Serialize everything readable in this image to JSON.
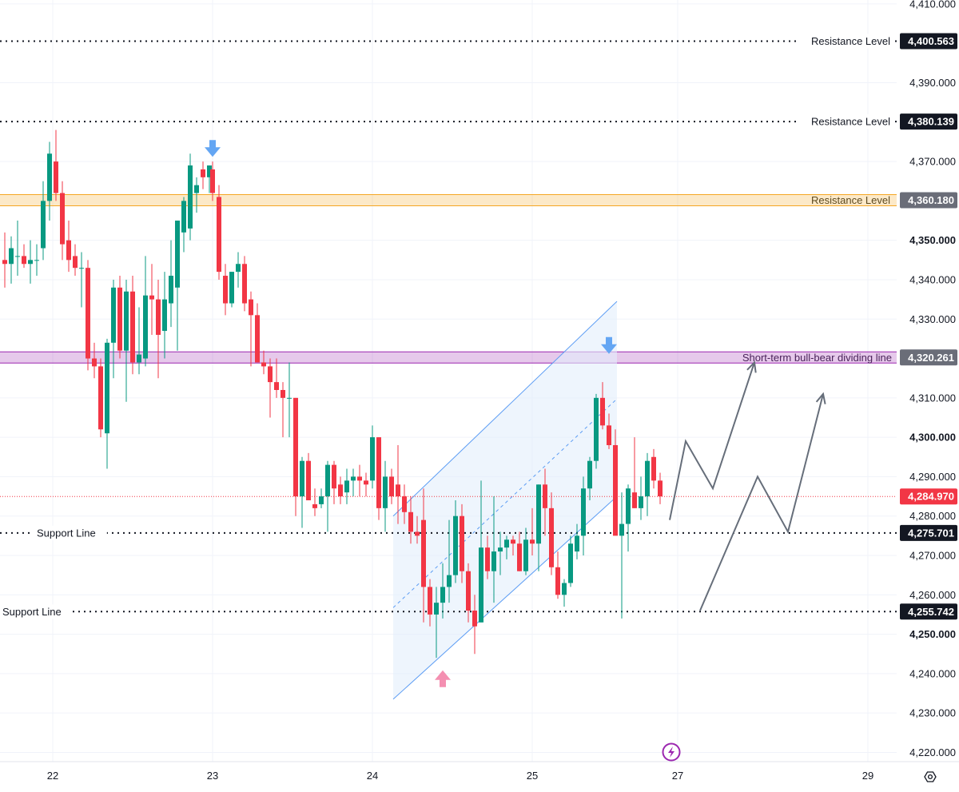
{
  "chart_data": {
    "type": "candlestick",
    "title": "",
    "xlabel": "",
    "ylabel": "",
    "ylim": [
      4216.5,
      4412
    ],
    "y_ticks": [
      {
        "value": 4410,
        "label": "4,410.000"
      },
      {
        "value": 4390,
        "label": "4,390.000"
      },
      {
        "value": 4370,
        "label": "4,370.000"
      },
      {
        "value": 4350,
        "label": "4,350.000",
        "bold": true
      },
      {
        "value": 4340,
        "label": "4,340.000"
      },
      {
        "value": 4330,
        "label": "4,330.000"
      },
      {
        "value": 4310,
        "label": "4,310.000"
      },
      {
        "value": 4300,
        "label": "4,300.000",
        "bold": true
      },
      {
        "value": 4290,
        "label": "4,290.000"
      },
      {
        "value": 4280,
        "label": "4,280.000"
      },
      {
        "value": 4270,
        "label": "4,270.000"
      },
      {
        "value": 4260,
        "label": "4,260.000"
      },
      {
        "value": 4250,
        "label": "4,250.000",
        "bold": true
      },
      {
        "value": 4240,
        "label": "4,240.000"
      },
      {
        "value": 4230,
        "label": "4,230.000"
      },
      {
        "value": 4220,
        "label": "4,220.000"
      }
    ],
    "x_ticks": [
      {
        "value": 0,
        "label": "22"
      },
      {
        "value": 1,
        "label": "23"
      },
      {
        "value": 2,
        "label": "24"
      },
      {
        "value": 3,
        "label": "25"
      },
      {
        "value": 3.91,
        "label": "27"
      },
      {
        "value": 5.1,
        "label": "29"
      }
    ],
    "grid": true,
    "candle_colors": {
      "up": "#089981",
      "down": "#f23645"
    },
    "candles": [
      {
        "t": -0.3,
        "o": 4345,
        "h": 4352,
        "l": 4338,
        "c": 4344
      },
      {
        "t": -0.26,
        "o": 4344,
        "h": 4351,
        "l": 4339,
        "c": 4348
      },
      {
        "t": -0.22,
        "o": 4346,
        "h": 4355,
        "l": 4341,
        "c": 4346
      },
      {
        "t": -0.18,
        "o": 4346,
        "h": 4349,
        "l": 4343,
        "c": 4344
      },
      {
        "t": -0.14,
        "o": 4344,
        "h": 4350,
        "l": 4339,
        "c": 4345
      },
      {
        "t": -0.1,
        "o": 4345,
        "h": 4349,
        "l": 4341,
        "c": 4345
      },
      {
        "t": -0.06,
        "o": 4348,
        "h": 4365,
        "l": 4345,
        "c": 4360
      },
      {
        "t": -0.02,
        "o": 4360,
        "h": 4375,
        "l": 4355,
        "c": 4372
      },
      {
        "t": 0.02,
        "o": 4370,
        "h": 4378,
        "l": 4360,
        "c": 4362
      },
      {
        "t": 0.06,
        "o": 4362,
        "h": 4365,
        "l": 4345,
        "c": 4349
      },
      {
        "t": 0.1,
        "o": 4350,
        "h": 4355,
        "l": 4342,
        "c": 4345
      },
      {
        "t": 0.14,
        "o": 4346,
        "h": 4349,
        "l": 4341,
        "c": 4343
      },
      {
        "t": 0.18,
        "o": 4343,
        "h": 4347,
        "l": 4333,
        "c": 4343
      },
      {
        "t": 0.22,
        "o": 4343,
        "h": 4345,
        "l": 4317,
        "c": 4320
      },
      {
        "t": 0.26,
        "o": 4320,
        "h": 4324,
        "l": 4315,
        "c": 4318
      },
      {
        "t": 0.3,
        "o": 4318,
        "h": 4320,
        "l": 4300,
        "c": 4302
      },
      {
        "t": 0.34,
        "o": 4301,
        "h": 4325,
        "l": 4292,
        "c": 4324
      },
      {
        "t": 0.38,
        "o": 4324,
        "h": 4340,
        "l": 4315,
        "c": 4338
      },
      {
        "t": 0.42,
        "o": 4338,
        "h": 4341,
        "l": 4320,
        "c": 4322
      },
      {
        "t": 0.46,
        "o": 4322,
        "h": 4340,
        "l": 4309,
        "c": 4337
      },
      {
        "t": 0.5,
        "o": 4337,
        "h": 4341,
        "l": 4316,
        "c": 4319
      },
      {
        "t": 0.54,
        "o": 4319,
        "h": 4333,
        "l": 4316,
        "c": 4321
      },
      {
        "t": 0.58,
        "o": 4320,
        "h": 4346,
        "l": 4318,
        "c": 4336
      },
      {
        "t": 0.62,
        "o": 4336,
        "h": 4344,
        "l": 4326,
        "c": 4335
      },
      {
        "t": 0.66,
        "o": 4335,
        "h": 4340,
        "l": 4315,
        "c": 4326
      },
      {
        "t": 0.7,
        "o": 4327,
        "h": 4342,
        "l": 4320,
        "c": 4335
      },
      {
        "t": 0.74,
        "o": 4334,
        "h": 4350,
        "l": 4328,
        "c": 4341
      },
      {
        "t": 0.78,
        "o": 4338,
        "h": 4355,
        "l": 4322,
        "c": 4355
      },
      {
        "t": 0.82,
        "o": 4352,
        "h": 4361,
        "l": 4347,
        "c": 4360
      },
      {
        "t": 0.86,
        "o": 4353,
        "h": 4372,
        "l": 4350,
        "c": 4369
      },
      {
        "t": 0.9,
        "o": 4362,
        "h": 4366,
        "l": 4357,
        "c": 4364
      },
      {
        "t": 0.94,
        "o": 4368,
        "h": 4370,
        "l": 4363,
        "c": 4366
      },
      {
        "t": 0.98,
        "o": 4366,
        "h": 4369,
        "l": 4362,
        "c": 4369
      },
      {
        "t": 1.0,
        "o": 4368,
        "h": 4370,
        "l": 4360,
        "c": 4362
      },
      {
        "t": 1.04,
        "o": 4361,
        "h": 4364,
        "l": 4340,
        "c": 4342
      },
      {
        "t": 1.08,
        "o": 4341,
        "h": 4344,
        "l": 4331,
        "c": 4334
      },
      {
        "t": 1.12,
        "o": 4334,
        "h": 4342,
        "l": 4333,
        "c": 4342
      },
      {
        "t": 1.16,
        "o": 4342,
        "h": 4347,
        "l": 4338,
        "c": 4344
      },
      {
        "t": 1.2,
        "o": 4344,
        "h": 4346,
        "l": 4332,
        "c": 4334
      },
      {
        "t": 1.24,
        "o": 4335,
        "h": 4337,
        "l": 4318,
        "c": 4331
      },
      {
        "t": 1.28,
        "o": 4331,
        "h": 4334,
        "l": 4319,
        "c": 4319
      },
      {
        "t": 1.32,
        "o": 4319,
        "h": 4322,
        "l": 4316,
        "c": 4318
      },
      {
        "t": 1.36,
        "o": 4318,
        "h": 4320,
        "l": 4305,
        "c": 4314
      },
      {
        "t": 1.4,
        "o": 4314,
        "h": 4320,
        "l": 4310,
        "c": 4312
      },
      {
        "t": 1.44,
        "o": 4312,
        "h": 4314,
        "l": 4300,
        "c": 4310
      },
      {
        "t": 1.48,
        "o": 4310,
        "h": 4319,
        "l": 4300,
        "c": 4310
      },
      {
        "t": 1.52,
        "o": 4310,
        "h": 4310,
        "l": 4280,
        "c": 4285
      },
      {
        "t": 1.56,
        "o": 4285,
        "h": 4295,
        "l": 4277,
        "c": 4294
      },
      {
        "t": 1.6,
        "o": 4294,
        "h": 4296,
        "l": 4284,
        "c": 4284
      },
      {
        "t": 1.64,
        "o": 4283,
        "h": 4287,
        "l": 4280,
        "c": 4282
      },
      {
        "t": 1.68,
        "o": 4283,
        "h": 4287,
        "l": 4282,
        "c": 4285
      },
      {
        "t": 1.72,
        "o": 4285,
        "h": 4294,
        "l": 4276,
        "c": 4293
      },
      {
        "t": 1.76,
        "o": 4293,
        "h": 4294,
        "l": 4283,
        "c": 4287
      },
      {
        "t": 1.8,
        "o": 4288,
        "h": 4290,
        "l": 4283,
        "c": 4285
      },
      {
        "t": 1.84,
        "o": 4286,
        "h": 4292,
        "l": 4283,
        "c": 4289
      },
      {
        "t": 1.88,
        "o": 4289,
        "h": 4292,
        "l": 4285,
        "c": 4290
      },
      {
        "t": 1.92,
        "o": 4290,
        "h": 4293,
        "l": 4285,
        "c": 4289
      },
      {
        "t": 1.96,
        "o": 4289,
        "h": 4291,
        "l": 4285,
        "c": 4288
      },
      {
        "t": 2.0,
        "o": 4289,
        "h": 4303,
        "l": 4287,
        "c": 4300
      },
      {
        "t": 2.04,
        "o": 4300,
        "h": 4300,
        "l": 4279,
        "c": 4282
      },
      {
        "t": 2.08,
        "o": 4282,
        "h": 4294,
        "l": 4276,
        "c": 4290
      },
      {
        "t": 2.12,
        "o": 4290,
        "h": 4292,
        "l": 4283,
        "c": 4285
      },
      {
        "t": 2.16,
        "o": 4288,
        "h": 4298,
        "l": 4278,
        "c": 4285
      },
      {
        "t": 2.2,
        "o": 4285,
        "h": 4288,
        "l": 4278,
        "c": 4281
      },
      {
        "t": 2.24,
        "o": 4281,
        "h": 4285,
        "l": 4273,
        "c": 4276
      },
      {
        "t": 2.28,
        "o": 4276,
        "h": 4280,
        "l": 4273,
        "c": 4275
      },
      {
        "t": 2.32,
        "o": 4279,
        "h": 4287,
        "l": 4253,
        "c": 4262
      },
      {
        "t": 2.36,
        "o": 4262,
        "h": 4264,
        "l": 4252,
        "c": 4255
      },
      {
        "t": 2.4,
        "o": 4255,
        "h": 4262,
        "l": 4244,
        "c": 4258
      },
      {
        "t": 2.44,
        "o": 4258,
        "h": 4268,
        "l": 4254,
        "c": 4262
      },
      {
        "t": 2.48,
        "o": 4262,
        "h": 4279,
        "l": 4258,
        "c": 4265
      },
      {
        "t": 2.52,
        "o": 4265,
        "h": 4284,
        "l": 4263,
        "c": 4280
      },
      {
        "t": 2.56,
        "o": 4280,
        "h": 4283,
        "l": 4263,
        "c": 4266
      },
      {
        "t": 2.6,
        "o": 4266,
        "h": 4268,
        "l": 4253,
        "c": 4256
      },
      {
        "t": 2.64,
        "o": 4256,
        "h": 4260,
        "l": 4245,
        "c": 4252
      },
      {
        "t": 2.68,
        "o": 4253,
        "h": 4289,
        "l": 4253,
        "c": 4272
      },
      {
        "t": 2.72,
        "o": 4272,
        "h": 4275,
        "l": 4264,
        "c": 4266
      },
      {
        "t": 2.76,
        "o": 4266,
        "h": 4285,
        "l": 4258,
        "c": 4271
      },
      {
        "t": 2.8,
        "o": 4271,
        "h": 4276,
        "l": 4265,
        "c": 4272
      },
      {
        "t": 2.84,
        "o": 4272,
        "h": 4275,
        "l": 4269,
        "c": 4274
      },
      {
        "t": 2.88,
        "o": 4274,
        "h": 4275,
        "l": 4270,
        "c": 4273
      },
      {
        "t": 2.92,
        "o": 4273,
        "h": 4276,
        "l": 4266,
        "c": 4266
      },
      {
        "t": 2.96,
        "o": 4266,
        "h": 4277,
        "l": 4265,
        "c": 4274
      },
      {
        "t": 3.0,
        "o": 4274,
        "h": 4282,
        "l": 4270,
        "c": 4273
      },
      {
        "t": 3.04,
        "o": 4273,
        "h": 4288,
        "l": 4266,
        "c": 4288
      },
      {
        "t": 3.08,
        "o": 4288,
        "h": 4292,
        "l": 4275,
        "c": 4282
      },
      {
        "t": 3.12,
        "o": 4282,
        "h": 4286,
        "l": 4265,
        "c": 4267
      },
      {
        "t": 3.16,
        "o": 4267,
        "h": 4271,
        "l": 4259,
        "c": 4260
      },
      {
        "t": 3.2,
        "o": 4260,
        "h": 4264,
        "l": 4257,
        "c": 4263
      },
      {
        "t": 3.24,
        "o": 4263,
        "h": 4275,
        "l": 4262,
        "c": 4273
      },
      {
        "t": 3.28,
        "o": 4271,
        "h": 4278,
        "l": 4269,
        "c": 4275
      },
      {
        "t": 3.32,
        "o": 4275,
        "h": 4290,
        "l": 4270,
        "c": 4287
      },
      {
        "t": 3.36,
        "o": 4287,
        "h": 4295,
        "l": 4284,
        "c": 4294
      },
      {
        "t": 3.4,
        "o": 4294,
        "h": 4311,
        "l": 4292,
        "c": 4310
      },
      {
        "t": 3.44,
        "o": 4310,
        "h": 4314,
        "l": 4302,
        "c": 4303
      },
      {
        "t": 3.48,
        "o": 4303,
        "h": 4306,
        "l": 4297,
        "c": 4298
      },
      {
        "t": 3.52,
        "o": 4298,
        "h": 4302,
        "l": 4276,
        "c": 4275
      },
      {
        "t": 3.56,
        "o": 4275,
        "h": 4286,
        "l": 4254,
        "c": 4278
      },
      {
        "t": 3.6,
        "o": 4278,
        "h": 4288,
        "l": 4271,
        "c": 4287
      },
      {
        "t": 3.64,
        "o": 4286,
        "h": 4300,
        "l": 4282,
        "c": 4282
      },
      {
        "t": 3.68,
        "o": 4282,
        "h": 4290,
        "l": 4279,
        "c": 4285
      },
      {
        "t": 3.72,
        "o": 4285,
        "h": 4296,
        "l": 4280,
        "c": 4294
      },
      {
        "t": 3.76,
        "o": 4295,
        "h": 4297,
        "l": 4287,
        "c": 4289
      },
      {
        "t": 3.8,
        "o": 4289,
        "h": 4291,
        "l": 4283,
        "c": 4285
      }
    ],
    "horizontal_levels": [
      {
        "name": "Resistance Level",
        "value": 4400.563,
        "badge": "4,400.563",
        "style": "dotted"
      },
      {
        "name": "Resistance Level",
        "value": 4380.139,
        "badge": "4,380.139",
        "style": "dotted"
      },
      {
        "name": "Resistance Level",
        "value": 4360.18,
        "badge": "4,360.180",
        "style": "zone",
        "color": "#f5a623"
      },
      {
        "name": "Short-term bull-bear dividing line",
        "value": 4320.261,
        "badge": "4,320.261",
        "style": "zone",
        "color": "#9c27b0"
      },
      {
        "name": "",
        "value": 4284.97,
        "badge": "4,284.970",
        "style": "current-price",
        "color": "#f23645"
      },
      {
        "name": "Support Line",
        "value": 4275.701,
        "badge": "4,275.701",
        "style": "dotted"
      },
      {
        "name": "Support Line",
        "value": 4255.742,
        "badge": "4,255.742",
        "style": "dotted"
      }
    ],
    "channel": {
      "start_t": 2.13,
      "end_t": 3.53,
      "lower_start": 4233.5,
      "lower_end": 4285,
      "upper_start": 4280,
      "upper_end": 4334.5,
      "color": "#5b9cf4"
    },
    "markers": [
      {
        "kind": "down-arrow",
        "t": 1.0,
        "value": 4373,
        "color": "#64a6f3"
      },
      {
        "kind": "down-arrow",
        "t": 3.48,
        "value": 4323,
        "color": "#64a6f3"
      },
      {
        "kind": "up-arrow",
        "t": 2.44,
        "value": 4239,
        "color": "#f48fb1"
      }
    ],
    "projected_paths": [
      [
        [
          3.86,
          4279
        ],
        [
          3.96,
          4299
        ],
        [
          4.13,
          4287
        ],
        [
          4.39,
          4319
        ]
      ],
      [
        [
          4.05,
          4256
        ],
        [
          4.41,
          4290
        ],
        [
          4.6,
          4276
        ],
        [
          4.82,
          4311
        ]
      ]
    ],
    "icons": [
      "replay-icon",
      "settings-icon"
    ]
  }
}
